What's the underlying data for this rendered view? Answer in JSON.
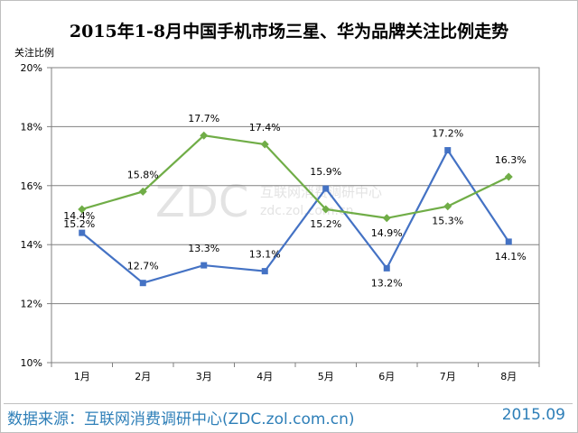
{
  "chart_data": {
    "type": "line",
    "title": "2015年1-8月中国手机市场三星、华为品牌关注比例走势",
    "ylabel": "关注比例",
    "xlabel": "",
    "categories": [
      "1月",
      "2月",
      "3月",
      "4月",
      "5月",
      "6月",
      "7月",
      "8月"
    ],
    "ylim": [
      10,
      20
    ],
    "yticks": [
      10,
      12,
      14,
      16,
      18,
      20
    ],
    "ytick_labels": [
      "10%",
      "12%",
      "14%",
      "16%",
      "18%",
      "20%"
    ],
    "grid": true,
    "series": [
      {
        "name": "三星",
        "color": "#4472c4",
        "marker": "square",
        "values": [
          14.4,
          12.7,
          13.3,
          13.1,
          15.9,
          13.2,
          17.2,
          14.1
        ],
        "labels": [
          "14.4%",
          "12.7%",
          "13.3%",
          "13.1%",
          "15.9%",
          "13.2%",
          "17.2%",
          "14.1%"
        ]
      },
      {
        "name": "华为",
        "color": "#70ad47",
        "marker": "diamond",
        "values": [
          15.2,
          15.8,
          17.7,
          17.4,
          15.2,
          14.9,
          15.3,
          16.3
        ],
        "labels": [
          "15.2%",
          "15.8%",
          "17.7%",
          "17.4%",
          "15.2%",
          "14.9%",
          "15.3%",
          "16.3%"
        ]
      }
    ]
  },
  "watermark": {
    "logo": "ZDC",
    "cn": "互联网消费调研中心",
    "url": "zdc.zol.com.cn"
  },
  "footer": {
    "source": "数据来源：互联网消费调研中心(ZDC.zol.com.cn)",
    "date": "2015.09"
  }
}
